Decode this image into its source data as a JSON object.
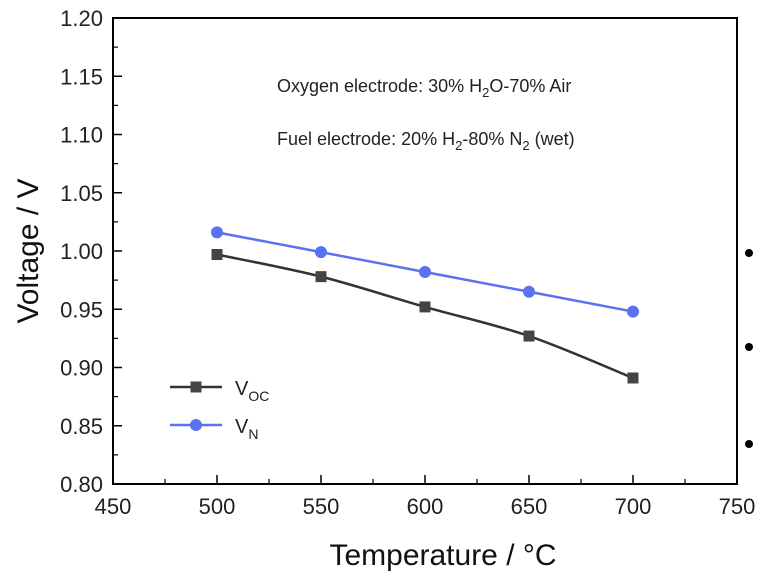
{
  "chart_data": {
    "type": "line",
    "xlabel_main": "Temperature / ",
    "xlabel_unit": "°C",
    "ylabel": "Voltage / V",
    "xlim": [
      450,
      750
    ],
    "ylim": [
      0.8,
      1.2
    ],
    "x_ticks": [
      "450",
      "500",
      "550",
      "600",
      "650",
      "700",
      "750"
    ],
    "y_ticks": [
      "0.80",
      "0.85",
      "0.90",
      "0.95",
      "1.00",
      "1.05",
      "1.10",
      "1.15",
      "1.20"
    ],
    "x": [
      500,
      550,
      600,
      650,
      700
    ],
    "series": [
      {
        "name_main": "V",
        "name_sub": "OC",
        "values": [
          0.997,
          0.978,
          0.952,
          0.927,
          0.891
        ],
        "color": "#333333",
        "marker": "square",
        "line": "smooth"
      },
      {
        "name_main": "V",
        "name_sub": "N",
        "values": [
          1.016,
          0.999,
          0.982,
          0.965,
          0.948
        ],
        "color": "#5b72f0",
        "marker": "circle",
        "line": "straight"
      }
    ],
    "annotations": [
      {
        "parts": [
          "Oxygen electrode: 30% H",
          "2",
          "O-70% Air"
        ]
      },
      {
        "parts": [
          "Fuel electrode: 20% H",
          "2",
          "-80% N",
          "2",
          " (wet)"
        ]
      }
    ],
    "legend_position": "bottom-left",
    "grid": false
  }
}
